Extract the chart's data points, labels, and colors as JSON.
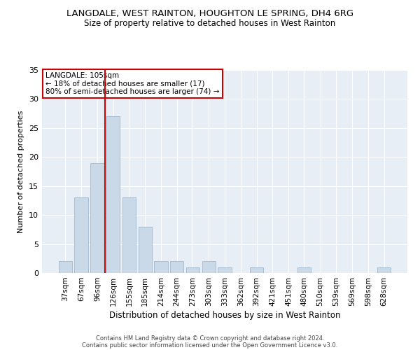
{
  "title": "LANGDALE, WEST RAINTON, HOUGHTON LE SPRING, DH4 6RG",
  "subtitle": "Size of property relative to detached houses in West Rainton",
  "xlabel": "Distribution of detached houses by size in West Rainton",
  "ylabel": "Number of detached properties",
  "categories": [
    "37sqm",
    "67sqm",
    "96sqm",
    "126sqm",
    "155sqm",
    "185sqm",
    "214sqm",
    "244sqm",
    "273sqm",
    "303sqm",
    "333sqm",
    "362sqm",
    "392sqm",
    "421sqm",
    "451sqm",
    "480sqm",
    "510sqm",
    "539sqm",
    "569sqm",
    "598sqm",
    "628sqm"
  ],
  "values": [
    2,
    13,
    19,
    27,
    13,
    8,
    2,
    2,
    1,
    2,
    1,
    0,
    1,
    0,
    0,
    1,
    0,
    0,
    0,
    0,
    1
  ],
  "bar_color": "#c9d9e8",
  "bar_edge_color": "#a0b8cc",
  "vline_x_index": 2.48,
  "vline_color": "#cc0000",
  "annotation_text": "LANGDALE: 105sqm\n← 18% of detached houses are smaller (17)\n80% of semi-detached houses are larger (74) →",
  "annotation_box_color": "#cc0000",
  "ylim": [
    0,
    35
  ],
  "yticks": [
    0,
    5,
    10,
    15,
    20,
    25,
    30,
    35
  ],
  "background_color": "#e8eef5",
  "footer_line1": "Contains HM Land Registry data © Crown copyright and database right 2024.",
  "footer_line2": "Contains public sector information licensed under the Open Government Licence v3.0.",
  "title_fontsize": 9.5,
  "subtitle_fontsize": 8.5,
  "xlabel_fontsize": 8.5,
  "ylabel_fontsize": 8.0,
  "tick_fontsize": 7.5,
  "ytick_fontsize": 8.0,
  "annotation_fontsize": 7.5,
  "footer_fontsize": 6.0
}
